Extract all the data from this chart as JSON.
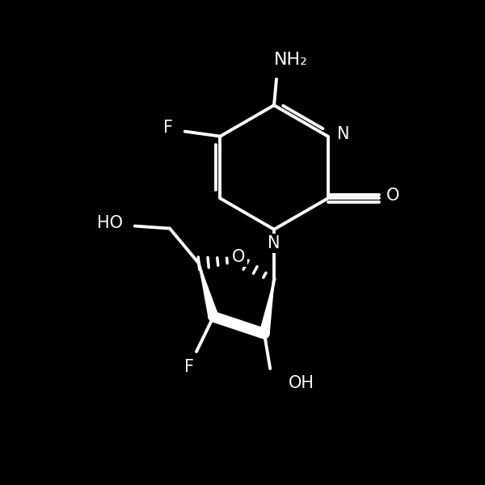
{
  "background_color": "#000000",
  "line_color": "#ffffff",
  "line_width": 2.8,
  "font_size": 15,
  "fig_size": [
    6.0,
    6.0
  ],
  "dpi": 100,
  "labels": {
    "NH2": "NH₂",
    "F_top": "F",
    "N3": "N",
    "N1": "N",
    "O_carbonyl": "O",
    "O_ring": "O",
    "HO": "HO",
    "F_bottom": "F",
    "OH": "OH"
  }
}
